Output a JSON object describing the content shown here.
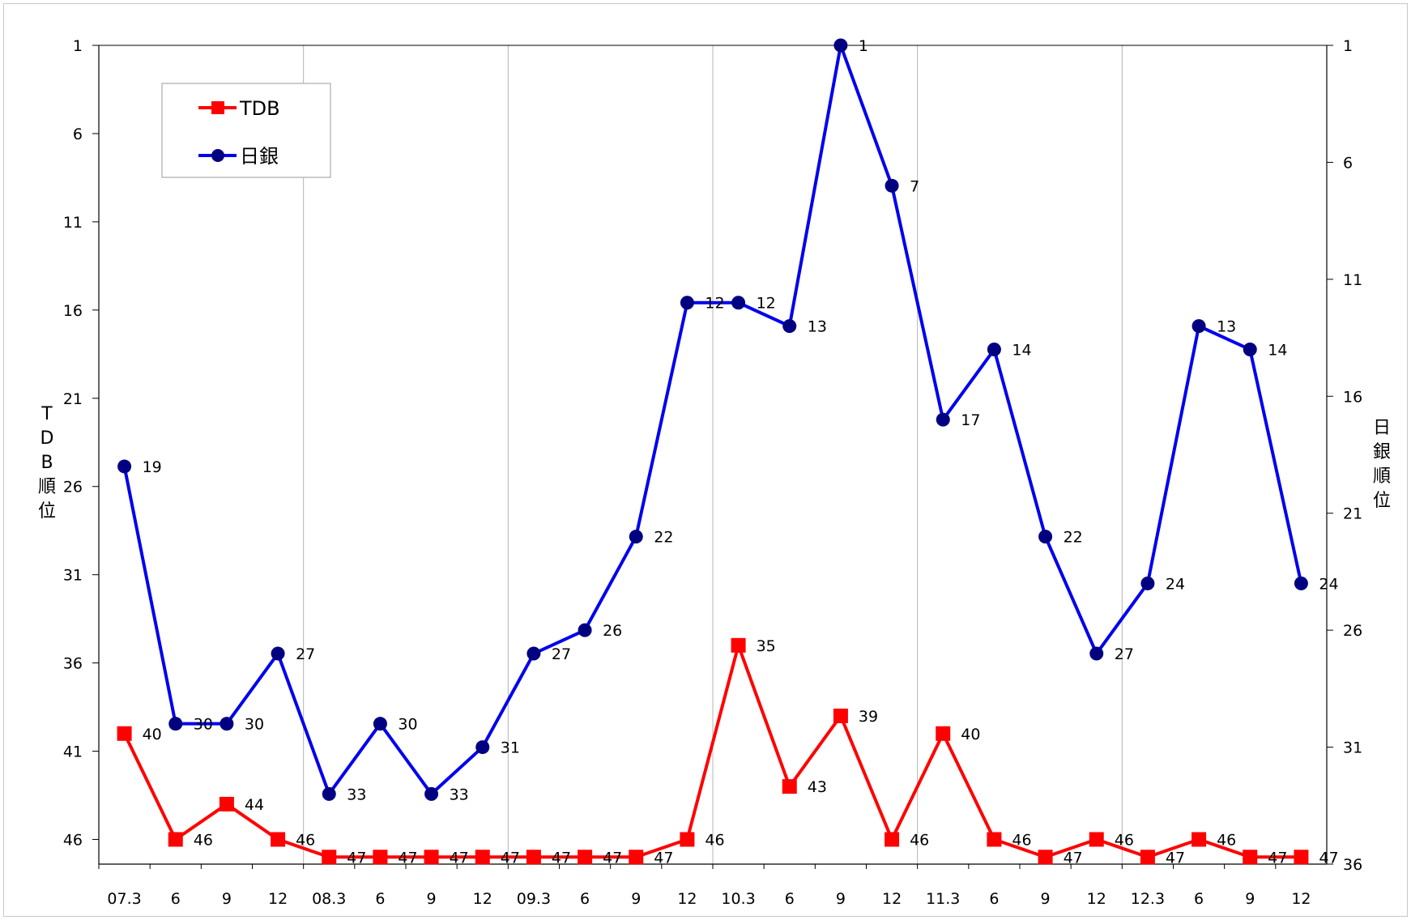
{
  "chart_data": {
    "type": "line",
    "categories": [
      "07.3",
      "6",
      "9",
      "12",
      "08.3",
      "6",
      "9",
      "12",
      "09.3",
      "6",
      "9",
      "12",
      "10.3",
      "6",
      "9",
      "12",
      "11.3",
      "6",
      "9",
      "12",
      "12.3",
      "6",
      "9",
      "12"
    ],
    "series": [
      {
        "name": "TDB",
        "axis": "left",
        "color": "#ff0000",
        "marker": "square",
        "values": [
          40,
          46,
          44,
          46,
          47,
          47,
          47,
          47,
          47,
          47,
          47,
          46,
          35,
          43,
          39,
          46,
          40,
          46,
          47,
          46,
          47,
          46,
          47,
          47
        ]
      },
      {
        "name": "日銀",
        "axis": "right",
        "color": "#0000ee",
        "marker": "circle",
        "marker_color": "#000080",
        "values": [
          19,
          30,
          30,
          27,
          33,
          30,
          33,
          31,
          27,
          26,
          22,
          12,
          12,
          13,
          1,
          7,
          17,
          14,
          22,
          27,
          24,
          13,
          14,
          24
        ]
      }
    ],
    "y_left": {
      "label": "TDB順位",
      "label_chars": [
        "T",
        "D",
        "B",
        "順",
        "位"
      ],
      "reversed": true,
      "range": [
        1,
        47
      ],
      "ticks": [
        1,
        6,
        11,
        16,
        21,
        26,
        31,
        36,
        41,
        46
      ]
    },
    "y_right": {
      "label": "日銀順位",
      "label_chars": [
        "日",
        "銀",
        "順",
        "位"
      ],
      "reversed": true,
      "range": [
        1,
        36
      ],
      "ticks": [
        1,
        6,
        11,
        16,
        21,
        26,
        31,
        36
      ]
    },
    "grid": {
      "vertical_every_categories": 4,
      "horizontal": false
    },
    "legend": {
      "placement": "top-left",
      "entries": [
        "TDB",
        "日銀"
      ]
    }
  }
}
